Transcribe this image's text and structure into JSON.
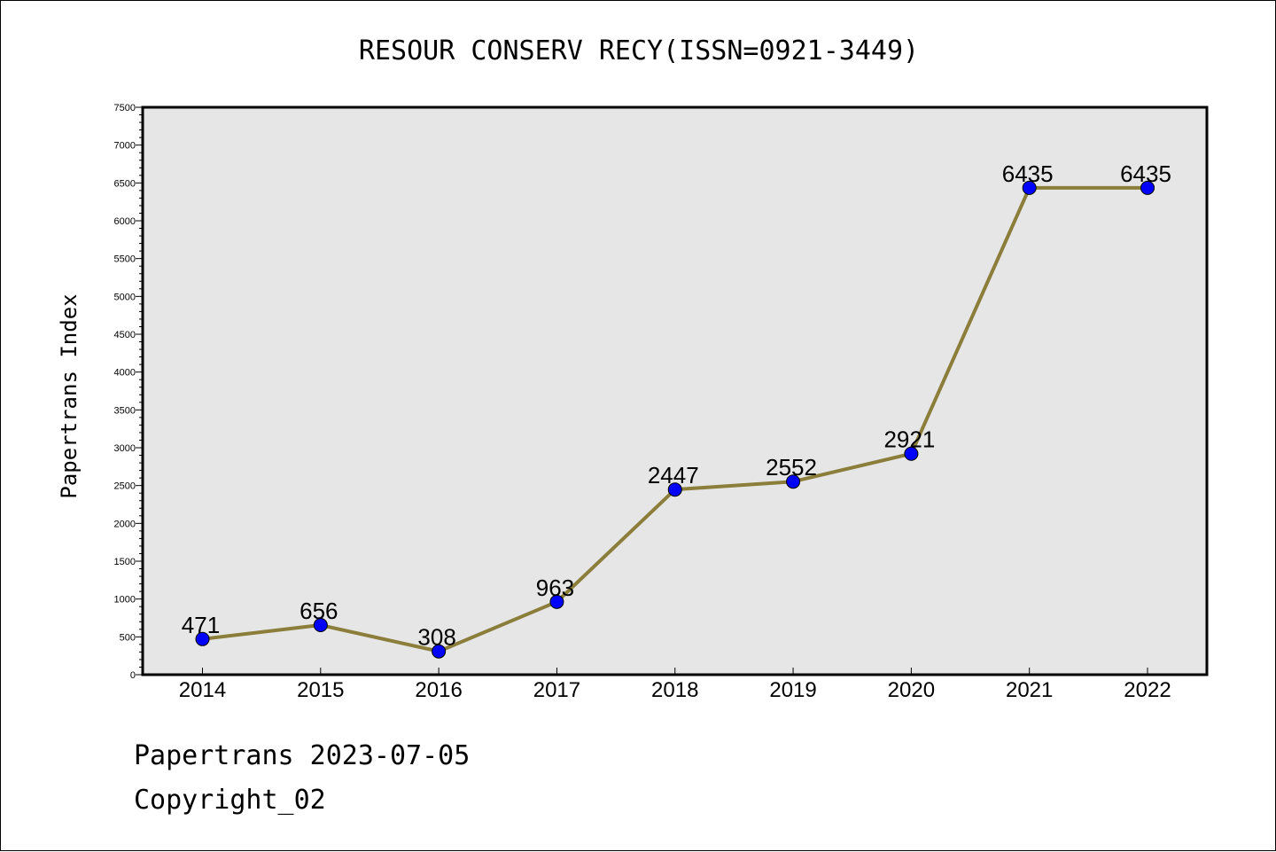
{
  "chart_data": {
    "type": "line",
    "title": "RESOUR CONSERV RECY(ISSN=0921-3449)",
    "xlabel": "",
    "ylabel": "Papertrans Index",
    "categories": [
      "2014",
      "2015",
      "2016",
      "2017",
      "2018",
      "2019",
      "2020",
      "2021",
      "2022"
    ],
    "values": [
      471,
      656,
      308,
      963,
      2447,
      2552,
      2921,
      6435,
      6435
    ],
    "data_labels": [
      "471",
      "656",
      "308",
      "963",
      "2447",
      "2552",
      "2921",
      "6435",
      "6435"
    ],
    "yticks": [
      "0",
      "500",
      "1000",
      "1500",
      "2000",
      "2500",
      "3000",
      "3500",
      "4000",
      "4500",
      "5000",
      "5500",
      "6000",
      "6500",
      "7000",
      "7500"
    ],
    "ylim": [
      0,
      7500
    ],
    "grid": false,
    "colors": {
      "line": "#8b7d3a",
      "marker": "#0000ff",
      "plot_background": "#e6e6e6"
    }
  },
  "footer": {
    "line1": "Papertrans 2023-07-05",
    "line2": "Copyright_02"
  }
}
